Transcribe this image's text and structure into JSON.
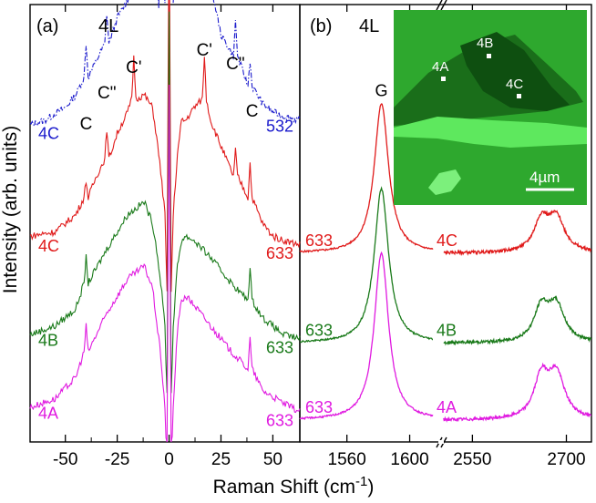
{
  "ylabel": "Intensity (arb. units)",
  "xlabel_main": "Raman Shift (cm",
  "xlabel_sup": "-1",
  "xlabel_close": ")",
  "colors": {
    "blue": "#1a1acc",
    "red": "#e01a1a",
    "green": "#1a7a1a",
    "magenta": "#e01ae0",
    "inset_green": "#2ea82e"
  },
  "chart_data": [
    {
      "type": "line",
      "panel_label": "(a)",
      "layer_label": "4L",
      "xlabel": "Raman Shift (cm-1)",
      "ylabel": "Intensity (arb. units)",
      "xlim": [
        -67,
        63
      ],
      "ylim": [
        0,
        100
      ],
      "x_ticks": [
        "-50",
        "-25",
        "0",
        "25",
        "50"
      ],
      "x_tick_values": [
        -50,
        -25,
        0,
        25,
        50
      ],
      "series": [
        {
          "name": "4C 532",
          "left_label": "4C",
          "right_label": "532",
          "color": "#1a1acc",
          "style": "dash-dot",
          "offset": 72,
          "x": [
            -67,
            -60,
            -50,
            -45,
            -41,
            -40,
            -39,
            -35,
            -31,
            -30,
            -29,
            -25,
            -20,
            -18,
            -17,
            -16,
            -12,
            -8,
            -6,
            -5,
            -4,
            -2,
            -1,
            0,
            1,
            2,
            4,
            6,
            8,
            12,
            16,
            17,
            18,
            20,
            25,
            31,
            32,
            33,
            38,
            39,
            40,
            45,
            50,
            55,
            63
          ],
          "y": [
            1,
            2,
            5,
            8,
            12,
            20,
            12,
            16,
            20,
            27,
            20,
            26,
            30,
            35,
            44,
            35,
            38,
            40,
            50,
            28,
            54,
            30,
            85,
            90,
            85,
            30,
            57,
            60,
            56,
            50,
            38,
            48,
            38,
            34,
            22,
            17,
            25,
            17,
            10,
            16,
            10,
            6,
            4,
            3,
            2
          ]
        },
        {
          "name": "4C 633",
          "left_label": "4C",
          "right_label": "633",
          "color": "#e01a1a",
          "style": "solid",
          "offset": 44,
          "x": [
            -67,
            -55,
            -45,
            -41,
            -40,
            -39,
            -35,
            -31,
            -30,
            -29,
            -25,
            -20,
            -18,
            -17,
            -16,
            -12,
            -8,
            -6,
            -4,
            -2,
            -1,
            0,
            1,
            2,
            4,
            6,
            8,
            12,
            16,
            17,
            18,
            20,
            25,
            31,
            32,
            33,
            38,
            39,
            40,
            45,
            50,
            55,
            63
          ],
          "y": [
            3,
            4,
            8,
            12,
            16,
            12,
            17,
            21,
            28,
            21,
            27,
            32,
            35,
            45,
            35,
            36,
            33,
            26,
            18,
            8,
            -10,
            80,
            -10,
            8,
            22,
            30,
            30,
            33,
            35,
            45,
            35,
            30,
            24,
            17,
            23,
            17,
            12,
            20,
            12,
            6,
            3,
            2,
            1
          ]
        },
        {
          "name": "4B 633",
          "left_label": "4B",
          "right_label": "633",
          "color": "#1a7a1a",
          "style": "solid",
          "offset": 22,
          "x": [
            -67,
            -55,
            -45,
            -41,
            -40,
            -39,
            -30,
            -20,
            -12,
            -8,
            -6,
            -4,
            -2,
            -1,
            0,
            1,
            2,
            4,
            6,
            8,
            12,
            20,
            30,
            38,
            39,
            40,
            45,
            55,
            63
          ],
          "y": [
            2,
            4,
            8,
            14,
            20,
            14,
            22,
            30,
            33,
            28,
            22,
            14,
            4,
            -12,
            78,
            -12,
            4,
            18,
            24,
            25,
            24,
            20,
            14,
            10,
            18,
            10,
            6,
            2,
            1
          ]
        },
        {
          "name": "4A 633",
          "left_label": "4A",
          "right_label": "633",
          "color": "#e01ae0",
          "style": "solid",
          "offset": 5,
          "x": [
            -67,
            -55,
            -45,
            -41,
            -40,
            -39,
            -30,
            -20,
            -12,
            -8,
            -6,
            -4,
            -2,
            -1,
            0,
            1,
            2,
            4,
            6,
            8,
            12,
            20,
            30,
            38,
            39,
            40,
            45,
            55,
            63
          ],
          "y": [
            2,
            4,
            9,
            15,
            21,
            15,
            24,
            32,
            35,
            30,
            22,
            14,
            2,
            -12,
            78,
            -12,
            2,
            20,
            27,
            28,
            26,
            21,
            15,
            11,
            18,
            11,
            6,
            3,
            1
          ]
        }
      ],
      "peak_labels": [
        "C",
        "C\"",
        "C'",
        "C'",
        "C\"",
        "C"
      ],
      "peak_positions": [
        -40,
        -30,
        -17,
        17,
        32,
        40
      ]
    },
    {
      "type": "line",
      "panel_label": "(b)",
      "layer_label": "4L",
      "xlabel": "Raman Shift (cm-1)",
      "x_ticks": [
        "1560",
        "1600",
        "2550",
        "2700"
      ],
      "x_tick_values": [
        1560,
        1600,
        2550,
        2700
      ],
      "x_break": [
        1620,
        2500
      ],
      "segment1_xlim": [
        1530,
        1620
      ],
      "segment2_xlim": [
        2500,
        2740
      ],
      "ylim": [
        0,
        100
      ],
      "peak_labels": {
        "G": 1582,
        "2D": 2676
      },
      "series": [
        {
          "name": "4C 633",
          "left_label": "633",
          "right_label": "4C",
          "color": "#e01a1a",
          "offset": 43,
          "G_height": 35,
          "D2_height": 13
        },
        {
          "name": "4B 633",
          "left_label": "633",
          "right_label": "4B",
          "color": "#1a7a1a",
          "offset": 22,
          "G_height": 36,
          "D2_height": 14
        },
        {
          "name": "4A 633",
          "left_label": "633",
          "right_label": "4A",
          "color": "#e01ae0",
          "offset": 4,
          "G_height": 39,
          "D2_height": 17
        }
      ],
      "inset": {
        "markers": [
          "4A",
          "4B",
          "4C"
        ],
        "scale_bar": "4µm"
      }
    }
  ]
}
